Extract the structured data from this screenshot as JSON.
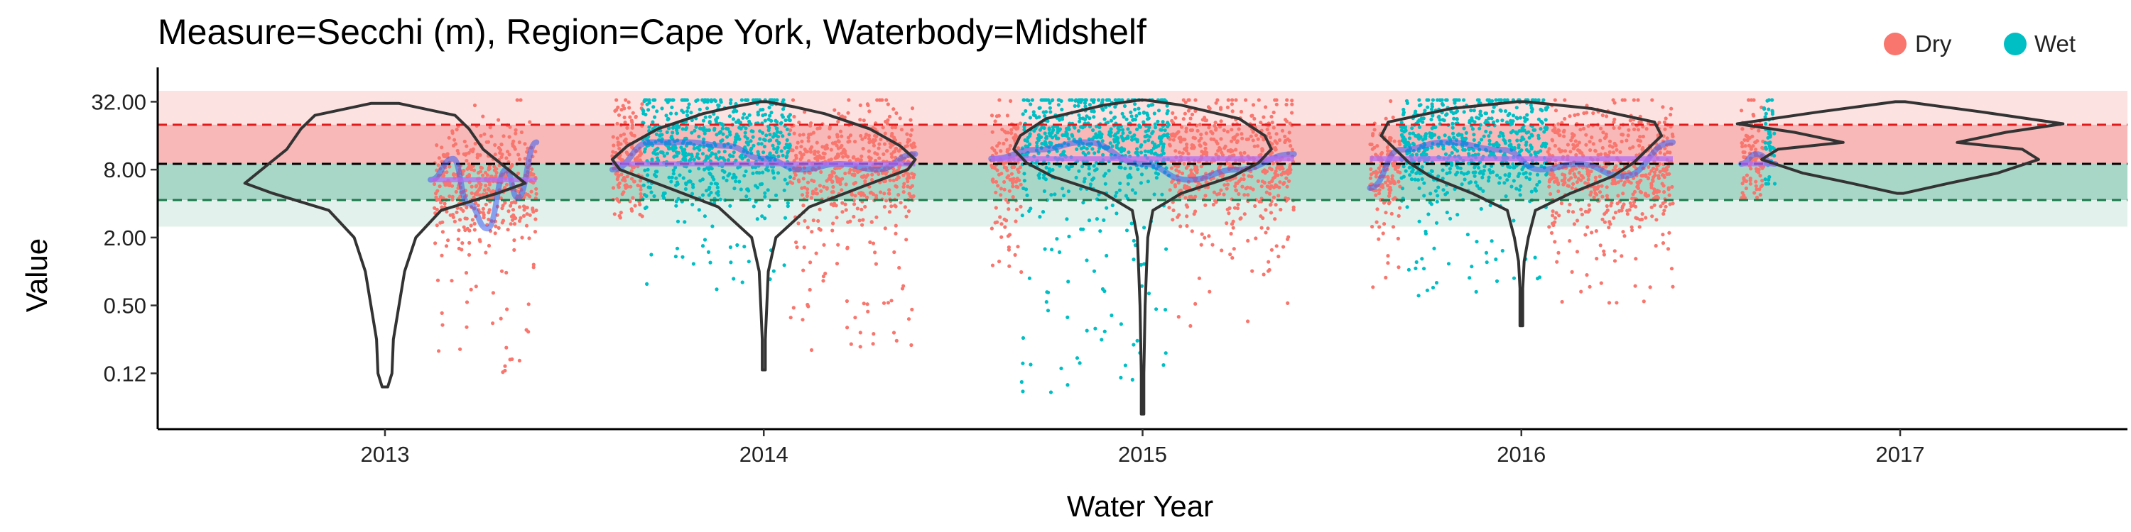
{
  "chart_data": {
    "type": "scatter",
    "title": "Measure=Secchi (m), Region=Cape York, Waterbody=Midshelf",
    "xlabel": "Water Year",
    "ylabel": "Value",
    "y_scale": "log2",
    "ylim": [
      0.04,
      60
    ],
    "xlim": [
      2012.4,
      2017.6
    ],
    "x_ticks": [
      2013,
      2014,
      2015,
      2016,
      2017
    ],
    "x_tick_labels": [
      "2013",
      "2014",
      "2015",
      "2016",
      "2017"
    ],
    "y_ticks": [
      0.125,
      0.5,
      2,
      8,
      32
    ],
    "y_tick_labels": [
      "0.12",
      "0.50",
      "2.00",
      "8.00",
      "32.00"
    ],
    "legend": {
      "position": "top-right",
      "entries": [
        {
          "name": "Dry",
          "color": "#F8766D"
        },
        {
          "name": "Wet",
          "color": "#00BFC4"
        }
      ]
    },
    "guideline_bands": [
      {
        "name": "upper-outer",
        "ymin": 2.5,
        "ymax": 40,
        "color": "#fde2e2"
      },
      {
        "name": "upper-inner",
        "ymin": 9,
        "ymax": 20,
        "color": "#f8b8b8"
      },
      {
        "name": "lower-inner",
        "ymin": 4.3,
        "ymax": 9,
        "color": "#a9d7c7"
      },
      {
        "name": "lower-outer",
        "ymin": 2.5,
        "ymax": 4.3,
        "color": "#e2f1ec"
      }
    ],
    "reference_lines": [
      {
        "name": "upper-threshold",
        "y": 20,
        "color": "#e31a1c"
      },
      {
        "name": "guideline",
        "y": 9,
        "color": "#000000"
      },
      {
        "name": "lower-threshold",
        "y": 4.3,
        "color": "#1b7a4b"
      }
    ],
    "violins": [
      {
        "year": 2013,
        "half_width": 0.37,
        "profile": [
          [
            -3.4,
            0.02
          ],
          [
            -3,
            0.05
          ],
          [
            -2,
            0.06
          ],
          [
            -1,
            0.1
          ],
          [
            0,
            0.14
          ],
          [
            1,
            0.22
          ],
          [
            1.8,
            0.4
          ],
          [
            2.3,
            0.8
          ],
          [
            2.6,
            1
          ],
          [
            3.1,
            0.85
          ],
          [
            3.6,
            0.7
          ],
          [
            4.2,
            0.6
          ],
          [
            4.6,
            0.5
          ],
          [
            4.95,
            0.1
          ]
        ]
      },
      {
        "year": 2014,
        "half_width": 0.4,
        "profile": [
          [
            -2.9,
            0.01
          ],
          [
            -2,
            0.01
          ],
          [
            -1,
            0.02
          ],
          [
            0,
            0.03
          ],
          [
            1,
            0.08
          ],
          [
            1.9,
            0.3
          ],
          [
            2.5,
            0.65
          ],
          [
            3,
            0.95
          ],
          [
            3.3,
            1
          ],
          [
            3.7,
            0.9
          ],
          [
            4.2,
            0.7
          ],
          [
            4.65,
            0.4
          ],
          [
            4.85,
            0.2
          ],
          [
            5,
            0.02
          ]
        ]
      },
      {
        "year": 2015,
        "half_width": 0.34,
        "profile": [
          [
            -4.2,
            0.01
          ],
          [
            -3,
            0.01
          ],
          [
            -2,
            0.015
          ],
          [
            -1,
            0.02
          ],
          [
            0,
            0.03
          ],
          [
            1,
            0.04
          ],
          [
            1.8,
            0.08
          ],
          [
            2.3,
            0.3
          ],
          [
            2.8,
            0.7
          ],
          [
            3.2,
            0.9
          ],
          [
            3.6,
            1
          ],
          [
            4,
            0.95
          ],
          [
            4.5,
            0.75
          ],
          [
            4.9,
            0.3
          ],
          [
            5.05,
            0.02
          ]
        ]
      },
      {
        "year": 2016,
        "half_width": 0.37,
        "profile": [
          [
            -1.6,
            0.01
          ],
          [
            -0.5,
            0.01
          ],
          [
            0.3,
            0.02
          ],
          [
            1,
            0.05
          ],
          [
            1.8,
            0.1
          ],
          [
            2.3,
            0.35
          ],
          [
            2.8,
            0.65
          ],
          [
            3.2,
            0.8
          ],
          [
            3.6,
            0.9
          ],
          [
            4,
            1
          ],
          [
            4.4,
            0.95
          ],
          [
            4.8,
            0.5
          ],
          [
            5,
            0.03
          ]
        ]
      },
      {
        "year": 2017,
        "half_width": 0.43,
        "profile": [
          [
            2.3,
            0.02
          ],
          [
            2.6,
            0.3
          ],
          [
            2.9,
            0.6
          ],
          [
            3.3,
            0.85
          ],
          [
            3.6,
            0.75
          ],
          [
            3.8,
            0.35
          ],
          [
            4.1,
            0.65
          ],
          [
            4.35,
            1
          ],
          [
            4.7,
            0.5
          ],
          [
            5,
            0.03
          ]
        ]
      }
    ],
    "scatter_groups": [
      {
        "season": "Dry",
        "x_start": 2013.13,
        "x_end": 2013.4,
        "median": 6.5,
        "low_tail": 0.12
      },
      {
        "season": "Dry",
        "x_start": 2013.6,
        "x_end": 2013.68,
        "median": 11,
        "low_tail": 3
      },
      {
        "season": "Wet",
        "x_start": 2013.68,
        "x_end": 2014.07,
        "median": 14,
        "low_tail": 0.6
      },
      {
        "season": "Dry",
        "x_start": 2014.07,
        "x_end": 2014.4,
        "median": 9,
        "low_tail": 0.2
      },
      {
        "season": "Dry",
        "x_start": 2014.6,
        "x_end": 2014.68,
        "median": 10,
        "low_tail": 0.8
      },
      {
        "season": "Wet",
        "x_start": 2014.68,
        "x_end": 2015.07,
        "median": 16,
        "low_tail": 0.08
      },
      {
        "season": "Dry",
        "x_start": 2015.07,
        "x_end": 2015.4,
        "median": 10,
        "low_tail": 0.3
      },
      {
        "season": "Dry",
        "x_start": 2015.6,
        "x_end": 2015.68,
        "median": 8,
        "low_tail": 0.5
      },
      {
        "season": "Wet",
        "x_start": 2015.68,
        "x_end": 2016.07,
        "median": 14,
        "low_tail": 0.6
      },
      {
        "season": "Dry",
        "x_start": 2016.07,
        "x_end": 2016.4,
        "median": 9,
        "low_tail": 0.5
      },
      {
        "season": "Dry",
        "x_start": 2016.58,
        "x_end": 2016.64,
        "median": 10,
        "low_tail": 4.5
      },
      {
        "season": "Wet",
        "x_start": 2016.64,
        "x_end": 2016.67,
        "median": 14,
        "low_tail": 6
      }
    ],
    "trend_flat": [
      {
        "x_start": 2013.12,
        "x_end": 2013.4,
        "y": 6.5
      },
      {
        "x_start": 2013.6,
        "x_end": 2014.4,
        "y": 9
      },
      {
        "x_start": 2014.6,
        "x_end": 2015.4,
        "y": 10
      },
      {
        "x_start": 2015.6,
        "x_end": 2016.4,
        "y": 10
      },
      {
        "x_start": 2016.58,
        "x_end": 2016.67,
        "y": 9
      }
    ],
    "trend_smooth": [
      {
        "points": [
          [
            2013.12,
            6.5
          ],
          [
            2013.18,
            10
          ],
          [
            2013.22,
            4
          ],
          [
            2013.27,
            2.4
          ],
          [
            2013.32,
            8
          ],
          [
            2013.35,
            4.5
          ],
          [
            2013.4,
            14
          ]
        ]
      },
      {
        "points": [
          [
            2013.6,
            8
          ],
          [
            2013.7,
            14
          ],
          [
            2013.8,
            14
          ],
          [
            2013.9,
            13
          ],
          [
            2014.0,
            10
          ],
          [
            2014.1,
            8
          ],
          [
            2014.2,
            9
          ],
          [
            2014.3,
            8
          ],
          [
            2014.4,
            11
          ]
        ]
      },
      {
        "points": [
          [
            2014.6,
            10
          ],
          [
            2014.72,
            12
          ],
          [
            2014.85,
            14
          ],
          [
            2015.0,
            9
          ],
          [
            2015.12,
            6.5
          ],
          [
            2015.25,
            8
          ],
          [
            2015.4,
            11
          ]
        ]
      },
      {
        "points": [
          [
            2015.6,
            5.5
          ],
          [
            2015.68,
            12
          ],
          [
            2015.8,
            14
          ],
          [
            2015.95,
            12
          ],
          [
            2016.05,
            8
          ],
          [
            2016.15,
            9
          ],
          [
            2016.27,
            7
          ],
          [
            2016.4,
            14
          ]
        ]
      },
      {
        "points": [
          [
            2016.58,
            9
          ],
          [
            2016.62,
            11
          ],
          [
            2016.67,
            9
          ]
        ]
      }
    ]
  }
}
